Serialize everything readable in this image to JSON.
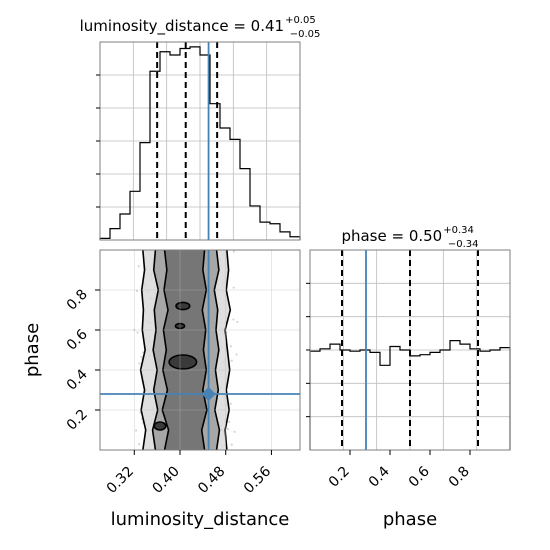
{
  "chart_data": [
    {
      "type": "histogram",
      "panel": "luminosity_distance-marginal",
      "title": {
        "base": "luminosity_distance = 0.41",
        "upper": "+0.05",
        "lower": "−0.05"
      },
      "xlim": [
        0.26,
        0.61
      ],
      "bin_edges": [
        0.26,
        0.2775,
        0.295,
        0.3125,
        0.33,
        0.3475,
        0.365,
        0.3825,
        0.4,
        0.4175,
        0.435,
        0.4525,
        0.47,
        0.4875,
        0.505,
        0.5225,
        0.54,
        0.5575,
        0.575,
        0.5925,
        0.61
      ],
      "counts": [
        1,
        7,
        16,
        30,
        60,
        104,
        116,
        114,
        118,
        119,
        114,
        84,
        69,
        62,
        44,
        21,
        11,
        10,
        5,
        2
      ],
      "ymax": 122,
      "quantiles": [
        0.36,
        0.41,
        0.465
      ],
      "truth": 0.45,
      "grid": true,
      "show_tick_labels": false
    },
    {
      "type": "histogram",
      "panel": "phase-marginal",
      "title": {
        "base": "phase = 0.50",
        "upper": "+0.34",
        "lower": "−0.34"
      },
      "xlim": [
        0.0,
        1.0
      ],
      "bin_edges": [
        0.0,
        0.05,
        0.1,
        0.15,
        0.2,
        0.25,
        0.3,
        0.35,
        0.4,
        0.45,
        0.5,
        0.55,
        0.6,
        0.65,
        0.7,
        0.75,
        0.8,
        0.85,
        0.9,
        0.95,
        1.0
      ],
      "counts": [
        0.84,
        0.86,
        0.9,
        0.85,
        0.84,
        0.85,
        0.83,
        0.72,
        0.88,
        0.85,
        0.8,
        0.81,
        0.83,
        0.85,
        0.93,
        0.9,
        0.86,
        0.84,
        0.85,
        0.87
      ],
      "ymax": 1.7,
      "quantiles": [
        0.16,
        0.5,
        0.84
      ],
      "truth": 0.28,
      "grid": true,
      "show_tick_labels": false
    },
    {
      "type": "contour",
      "panel": "luminosity_distance-vs-phase",
      "xlabel": "luminosity_distance",
      "ylabel": "phase",
      "xlim": [
        0.26,
        0.61
      ],
      "ylim": [
        0.0,
        1.0
      ],
      "xticks": [
        "0.32",
        "0.40",
        "0.48",
        "0.56"
      ],
      "xtick_values": [
        0.32,
        0.4,
        0.48,
        0.56
      ],
      "yticks": [
        "0.2",
        "0.4",
        "0.6",
        "0.8"
      ],
      "ytick_values": [
        0.2,
        0.4,
        0.6,
        0.8
      ],
      "truth": {
        "x": 0.45,
        "y": 0.28
      },
      "bands": [
        {
          "level": "outer",
          "x_left": [
            0.335,
            0.34,
            0.332,
            0.338,
            0.331,
            0.339,
            0.334,
            0.336,
            0.333,
            0.338,
            0.335
          ],
          "x_right": [
            0.482,
            0.479,
            0.486,
            0.481,
            0.487,
            0.483,
            0.479,
            0.488,
            0.481,
            0.485,
            0.482
          ],
          "y": [
            0.0,
            0.1,
            0.2,
            0.3,
            0.4,
            0.5,
            0.6,
            0.7,
            0.8,
            0.9,
            1.0
          ]
        },
        {
          "level": "middle",
          "x_left": [
            0.357,
            0.352,
            0.361,
            0.354,
            0.36,
            0.353,
            0.358,
            0.355,
            0.362,
            0.354,
            0.357
          ],
          "x_right": [
            0.464,
            0.469,
            0.461,
            0.467,
            0.462,
            0.468,
            0.463,
            0.466,
            0.46,
            0.468,
            0.464
          ],
          "y": [
            0.0,
            0.1,
            0.2,
            0.3,
            0.4,
            0.5,
            0.6,
            0.7,
            0.8,
            0.9,
            1.0
          ]
        },
        {
          "level": "inner",
          "x_left": [
            0.373,
            0.38,
            0.369,
            0.378,
            0.37,
            0.376,
            0.371,
            0.379,
            0.372,
            0.377,
            0.373
          ],
          "x_right": [
            0.443,
            0.438,
            0.447,
            0.44,
            0.446,
            0.441,
            0.445,
            0.439,
            0.446,
            0.44,
            0.443
          ],
          "y": [
            0.0,
            0.1,
            0.2,
            0.3,
            0.4,
            0.5,
            0.6,
            0.7,
            0.8,
            0.9,
            1.0
          ]
        }
      ],
      "peaks": [
        {
          "x": 0.405,
          "y": 0.44,
          "rx": 0.024,
          "ry": 0.035
        },
        {
          "x": 0.405,
          "y": 0.72,
          "rx": 0.012,
          "ry": 0.018
        },
        {
          "x": 0.365,
          "y": 0.12,
          "rx": 0.01,
          "ry": 0.02
        },
        {
          "x": 0.4,
          "y": 0.62,
          "rx": 0.008,
          "ry": 0.012
        }
      ],
      "grid": true
    }
  ],
  "colors": {
    "truth": "#4682b4",
    "line": "#000000",
    "grid": "#bdbdbd",
    "points": "#a9a9a9",
    "frame": "#7f7f7f"
  }
}
